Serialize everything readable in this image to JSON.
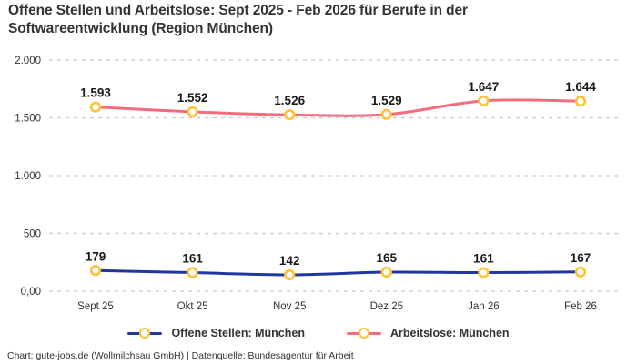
{
  "title": "Offene Stellen und Arbeitslose: Sept 2025 - Feb 2026 für Berufe in der Softwareentwicklung (Region München)",
  "footer": "Chart: gute-jobs.de (Wollmilchsau GmbH) | Datenquelle: Bundesagentur für Arbeit",
  "colors": {
    "open_positions_line": "#21379D",
    "unemployed_line": "#F56C7F",
    "marker_stroke": "#FFC233",
    "marker_fill": "#FFFFFF",
    "grid": "#C9C9C9",
    "text": "#333333",
    "data_label": "#1A1A1A",
    "background": "#FFFFFF"
  },
  "chart_data": {
    "type": "line",
    "title": "Offene Stellen und Arbeitslose: Sept 2025 - Feb 2026 für Berufe in der Softwareentwicklung (Region München)",
    "categories": [
      "Sept 25",
      "Okt 25",
      "Nov 25",
      "Dez 25",
      "Jan 26",
      "Feb 26"
    ],
    "series": [
      {
        "name": "Offene Stellen: München",
        "color": "#21379D",
        "values": [
          179,
          161,
          142,
          165,
          161,
          167
        ],
        "labels": [
          "179",
          "161",
          "142",
          "165",
          "161",
          "167"
        ]
      },
      {
        "name": "Arbeitslose: München",
        "color": "#F56C7F",
        "values": [
          1593,
          1552,
          1526,
          1529,
          1647,
          1644
        ],
        "labels": [
          "1.593",
          "1.552",
          "1.526",
          "1.529",
          "1.647",
          "1.644"
        ]
      }
    ],
    "ylim": [
      0,
      2000
    ],
    "y_ticks": [
      {
        "value": 0,
        "label": "0,00"
      },
      {
        "value": 500,
        "label": "500"
      },
      {
        "value": 1000,
        "label": "1.000"
      },
      {
        "value": 1500,
        "label": "1.500"
      },
      {
        "value": 2000,
        "label": "2.000"
      }
    ],
    "xlabel": "",
    "ylabel": "",
    "grid": "horizontal-dashed",
    "legend_position": "bottom",
    "marker": {
      "shape": "circle",
      "stroke": "#FFC233",
      "fill": "#FFFFFF"
    }
  }
}
